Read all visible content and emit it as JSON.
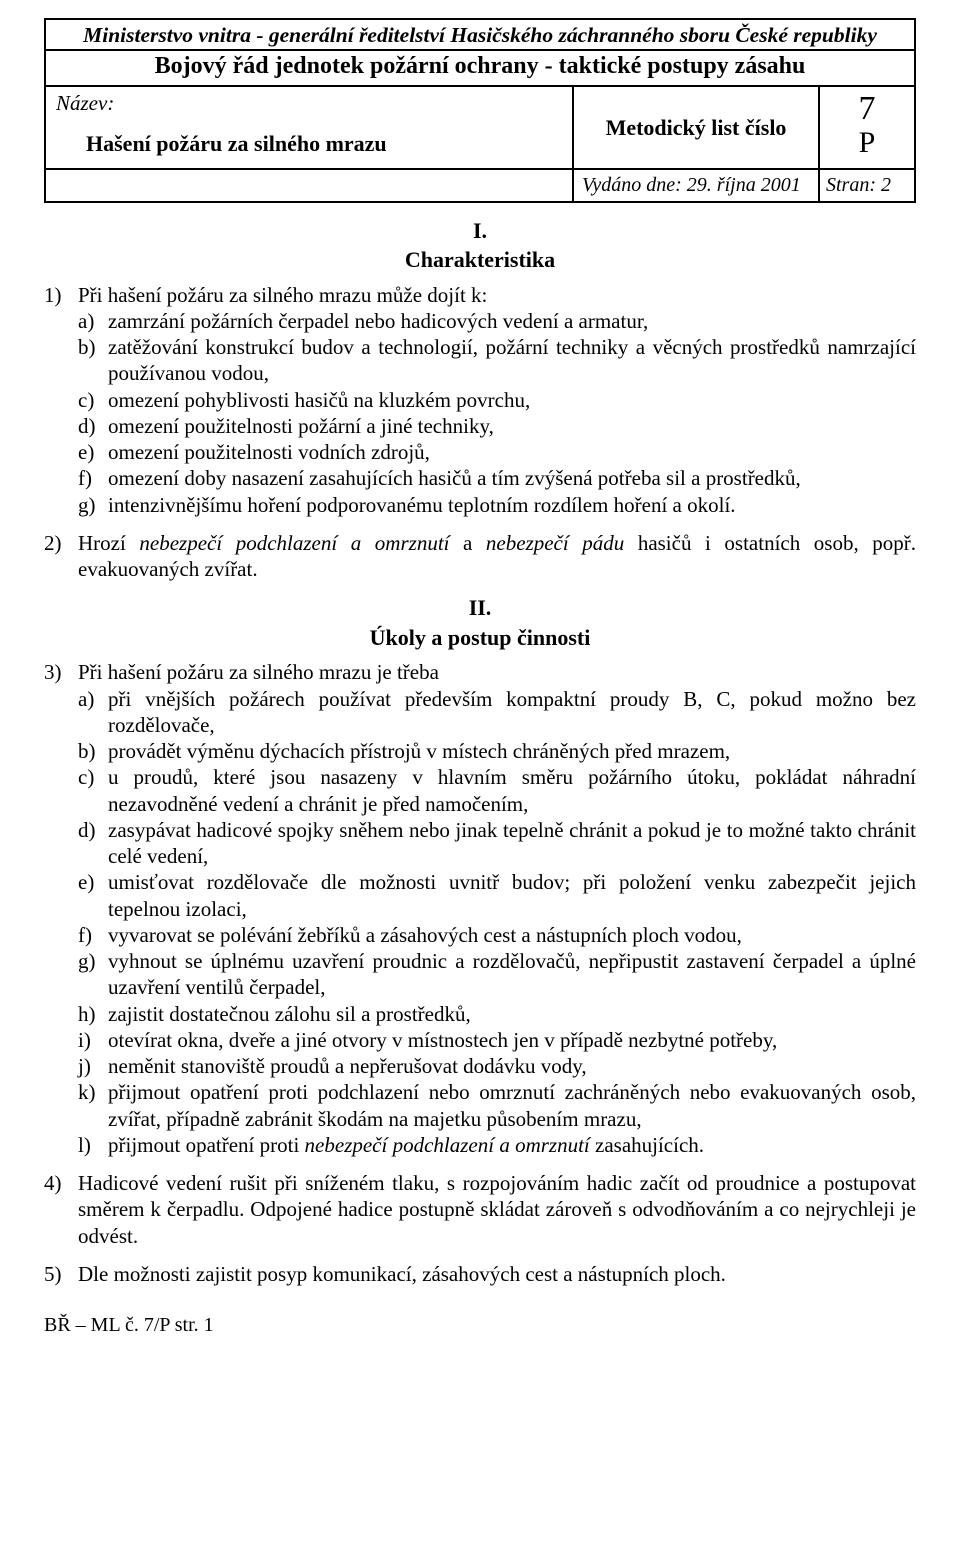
{
  "header": {
    "ministry": "Ministerstvo vnitra - generální ředitelství Hasičského záchranného sboru České republiky",
    "subtitle": "Bojový řád jednotek požární ochrany - taktické postupy zásahu",
    "name_label": "Název:",
    "name_value": "Hašení požáru za silného mrazu",
    "method_label": "Metodický list číslo",
    "code_num": "7",
    "code_letter": "P",
    "issued": "Vydáno dne: 29. října 2001",
    "pages": "Stran: 2"
  },
  "section1": {
    "roman": "I.",
    "title": "Charakteristika",
    "item1": {
      "lead": "Při hašení požáru za silného mrazu může dojít k:",
      "a": "zamrzání požárních čerpadel nebo hadicových vedení a armatur,",
      "b": "zatěžování konstrukcí budov a technologií, požární techniky a věcných prostředků namrzající používanou vodou,",
      "c": "omezení pohyblivosti hasičů na kluzkém povrchu,",
      "d": "omezení použitelnosti požární a jiné techniky,",
      "e": "omezení použitelnosti vodních zdrojů,",
      "f": "omezení doby nasazení zasahujících hasičů a tím zvýšená potřeba sil a prostředků,",
      "g": "intenzivnějšímu hoření podporovanému teplotním rozdílem hoření a okolí."
    },
    "item2_pre": "Hrozí ",
    "item2_i1": "nebezpečí podchlazení a omrznutí",
    "item2_mid": " a ",
    "item2_i2": "nebezpečí pádu",
    "item2_post": " hasičů i ostatních osob, popř. evakuovaných zvířat."
  },
  "section2": {
    "roman": "II.",
    "title": "Úkoly a postup činnosti",
    "item3": {
      "lead": "Při hašení požáru za silného mrazu je třeba",
      "a": "při vnějších požárech používat především kompaktní proudy B, C, pokud možno bez rozdělovače,",
      "b": "provádět výměnu dýchacích přístrojů v místech chráněných před mrazem,",
      "c": "u proudů, které jsou nasazeny v hlavním směru požárního útoku, pokládat náhradní nezavodněné vedení a chránit je před namočením,",
      "d": "zasypávat hadicové spojky sněhem nebo jinak tepelně chránit a pokud je to možné takto chránit celé vedení,",
      "e": "umisťovat rozdělovače dle možnosti uvnitř budov; při položení venku zabezpečit jejich tepelnou izolaci,",
      "f": "vyvarovat se polévání žebříků a zásahových cest a nástupních ploch vodou,",
      "g": "vyhnout se úplnému uzavření proudnic a rozdělovačů, nepřipustit zastavení čerpadel a úplné uzavření ventilů čerpadel,",
      "h": "zajistit dostatečnou zálohu sil a prostředků,",
      "i": "otevírat okna, dveře a jiné otvory v místnostech jen v případě nezbytné potřeby,",
      "j": "neměnit stanoviště proudů a nepřerušovat dodávku vody,",
      "k": "přijmout opatření proti podchlazení nebo omrznutí zachráněných nebo evakuovaných osob, zvířat, případně zabránit škodám na majetku působením mrazu,",
      "l_pre": "přijmout opatření proti ",
      "l_i": "nebezpečí podchlazení a omrznutí",
      "l_post": " zasahujících."
    },
    "item4": "Hadicové vedení rušit při sníženém tlaku, s rozpojováním hadic začít od proudnice a postupovat směrem k čerpadlu. Odpojené hadice postupně skládat zároveň s odvodňováním a co nejrychleji je odvést.",
    "item5": "Dle možnosti zajistit posyp komunikací, zásahových cest a nástupních ploch."
  },
  "footer": "BŘ – ML č. 7/P str. 1"
}
